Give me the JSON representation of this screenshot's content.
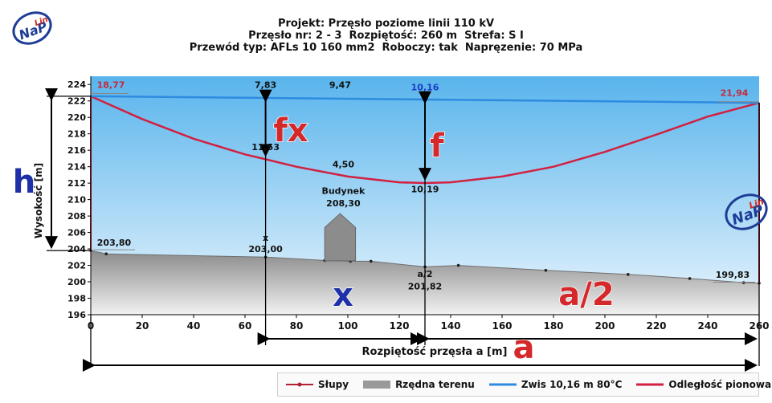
{
  "header": {
    "line1": "Projekt: Przęsło poziome linii 110 kV",
    "line2": "Przęsło nr: 2 - 3  Rozpiętość: 260 m  Strefa: S I",
    "line3": "Przewód typ: AFLs 10 160 mm2  Roboczy: tak  Napręzenie: 70 MPa"
  },
  "logo": {
    "text": "NaPLin",
    "colors": {
      "primary": "#1e3c96",
      "accent": "#d2281e"
    }
  },
  "colors": {
    "sky_top": "#58b4ec",
    "sky_bottom": "#eaf5fd",
    "terrain_top": "#8a8a8a",
    "terrain_bottom": "#f2f2f2",
    "zwis": "#2e8be0",
    "odleglosc": "#d22040",
    "slupy": "#b02030",
    "label_red": "#c8283c",
    "label_blue": "#1a3cc8",
    "big_red": "#d4282a",
    "big_blue": "#1e30a8"
  },
  "chart_data": {
    "type": "line",
    "xlabel": "Rozpiętość przęsła a [m]",
    "ylabel": "Wysokość [m]",
    "xlim": [
      0,
      260
    ],
    "ylim": [
      196,
      225
    ],
    "x_ticks": [
      "0",
      "20",
      "40",
      "60",
      "80",
      "100",
      "120",
      "140",
      "160",
      "180",
      "200",
      "220",
      "240",
      "260"
    ],
    "y_ticks": [
      "196",
      "198",
      "200",
      "202",
      "204",
      "206",
      "208",
      "210",
      "212",
      "214",
      "216",
      "218",
      "220",
      "222",
      "224"
    ],
    "series": [
      {
        "name": "Słupy",
        "segments": [
          {
            "x": [
              0,
              0
            ],
            "y": [
              203.8,
              222.57
            ]
          },
          {
            "x": [
              260,
              260
            ],
            "y": [
              199.83,
              221.77
            ]
          }
        ]
      },
      {
        "name": "Rzędna terenu",
        "x": [
          0,
          6,
          68,
          91,
          101,
          109,
          130,
          143,
          177,
          209,
          233,
          254,
          260
        ],
        "y": [
          203.8,
          203.4,
          203.0,
          202.6,
          202.5,
          202.5,
          201.82,
          202.0,
          201.4,
          200.9,
          200.4,
          199.9,
          199.83
        ]
      },
      {
        "name": "Zwis 10,16 m 80°C",
        "x": [
          0,
          260
        ],
        "y": [
          222.57,
          221.77
        ]
      },
      {
        "name": "Odległość pionowa 80°C",
        "x": [
          0,
          20,
          40,
          60,
          68,
          80,
          100,
          120,
          130,
          140,
          160,
          180,
          200,
          220,
          240,
          260
        ],
        "y": [
          222.57,
          219.8,
          217.4,
          215.5,
          214.9,
          214.0,
          212.8,
          212.1,
          212.01,
          212.1,
          212.8,
          214.0,
          215.8,
          217.9,
          220.1,
          221.77
        ]
      }
    ],
    "building": {
      "label": "Budynek",
      "height_label": "208,30",
      "x_left": 91,
      "x_right": 103,
      "wall_top": 206.6,
      "roof_top": 208.3,
      "base": 202.55
    },
    "annotations": {
      "left_top": "18,77",
      "right_top": "21,94",
      "left_ground": "203,80",
      "right_ground": "199,83",
      "x_top": "7,83",
      "mid_top": "9,47",
      "sag_top": "10,16",
      "x_mid": "11,53",
      "bld_clear": "4,50",
      "sag_low": "10,19",
      "x_label": "x",
      "x_ground": "203,00",
      "a2_label": "a/2",
      "a2_ground": "201,82"
    },
    "big_labels": {
      "h": "h",
      "fx": "fx",
      "f": "f",
      "x": "x",
      "a2": "a/2",
      "a": "a"
    },
    "legend": [
      {
        "name": "Słupy"
      },
      {
        "name": "Rzędna terenu"
      },
      {
        "name": "Zwis 10,16 m 80°C"
      },
      {
        "name": "Odległość pionowa 80°C"
      }
    ]
  }
}
